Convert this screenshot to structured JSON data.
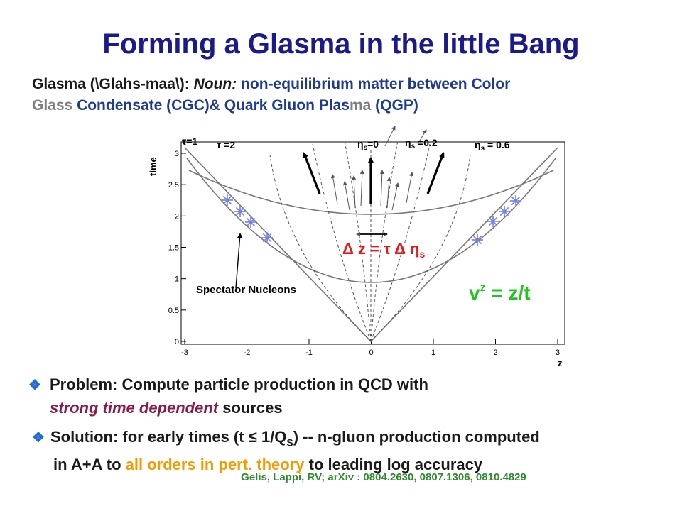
{
  "title": "Forming a Glasma in the little Bang",
  "definition": {
    "term": "Glasma (\\Glahs-maa\\):",
    "pos": "Noun:",
    "line1_rest": "non-equilibrium matter between Color",
    "glass": "Glass",
    "cgc": "Condensate (CGC)& Quark Gluon Plas",
    "ma": "ma",
    "qgp": "(QGP)"
  },
  "plot": {
    "ylabel": "time",
    "xlabel": "z",
    "xticks": [
      "-3",
      "-2",
      "-1",
      "0",
      "1",
      "2",
      "3"
    ],
    "yticks": [
      "0",
      "0.5",
      "1",
      "1.5",
      "2",
      "2.5",
      "3"
    ],
    "tau1": "τ=1",
    "tau2": "τ =2",
    "eta0": "η",
    "eta0_sub": "s",
    "eta0_val": "=0",
    "eta02": "η",
    "eta02_sub": "s",
    "eta02_val": " =0.2",
    "eta06": "η",
    "eta06_sub": "s",
    "eta06_val": " = 0.6",
    "spectator": "Spectator Nucleons",
    "dz_eq": "Δ z = τ Δ η",
    "dz_sub": "s",
    "vz": "v",
    "vz_sup": "z",
    "vz_rest": " = z/t",
    "colors": {
      "red": "#e8191a",
      "green": "#22c322",
      "star": "#6f7fe6",
      "curve": "#777777"
    }
  },
  "problem": {
    "bullet_icon": "diamond-bullet-icon",
    "line1": "Problem: Compute particle production in QCD with",
    "strong": "strong   time dependent",
    "sources": " sources"
  },
  "solution": {
    "bullet_icon": "diamond-bullet-icon",
    "line1_a": "Solution:  for early times (t ",
    "leq": "≤",
    "line1_b": " 1/Q",
    "sub": "S",
    "line1_c": ") -- n-gluon production computed",
    "line2_a": "in A+A to ",
    "orange": "all orders in pert. theory",
    "line2_b": " to leading log accuracy"
  },
  "citation": "Gelis, Lappi, RV;  arXiv : 0804.2630, 0807.1306, 0810.4829"
}
